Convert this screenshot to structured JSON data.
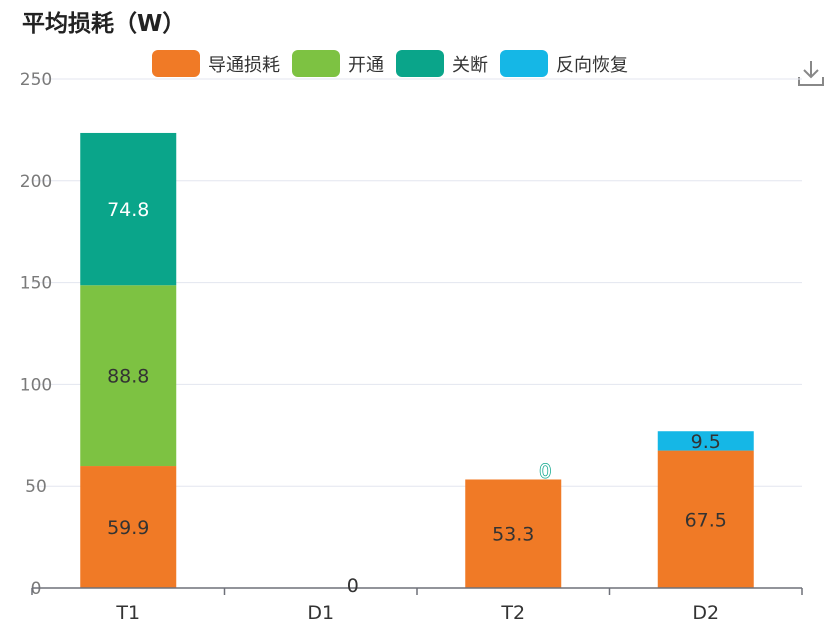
{
  "chart_data": {
    "type": "bar",
    "stacked": true,
    "title": "平均损耗（W）",
    "categories": [
      "T1",
      "D1",
      "T2",
      "D2"
    ],
    "ylim": [
      0,
      250
    ],
    "yticks": [
      0,
      50,
      100,
      150,
      200,
      250
    ],
    "grid": true,
    "legend_position": "top",
    "series": [
      {
        "name": "导通损耗",
        "color": "#f07a26",
        "values": [
          59.9,
          0,
          53.3,
          67.5
        ],
        "label_color": "#333333"
      },
      {
        "name": "开通",
        "color": "#7dc242",
        "values": [
          88.8,
          0,
          0,
          0
        ],
        "label_color": "#333333"
      },
      {
        "name": "关断",
        "color": "#0aa58a",
        "values": [
          74.8,
          0,
          0,
          0
        ],
        "label_color": "#ffffff"
      },
      {
        "name": "反向恢复",
        "color": "#15b7e6",
        "values": [
          0,
          0,
          0,
          9.5
        ],
        "label_color": "#333333"
      }
    ],
    "shown_labels": [
      {
        "series": 0,
        "category": 0,
        "text": "59.9"
      },
      {
        "series": 1,
        "category": 0,
        "text": "88.8"
      },
      {
        "series": 2,
        "category": 0,
        "text": "74.8"
      },
      {
        "series": 0,
        "category": 1,
        "text": "0"
      },
      {
        "series": 0,
        "category": 2,
        "text": "53.3"
      },
      {
        "series": 2,
        "category": 2,
        "text": "0"
      },
      {
        "series": 0,
        "category": 3,
        "text": "67.5"
      },
      {
        "series": 3,
        "category": 3,
        "text": "9.5"
      }
    ]
  },
  "toolbar": {
    "download_icon": "download-icon"
  }
}
